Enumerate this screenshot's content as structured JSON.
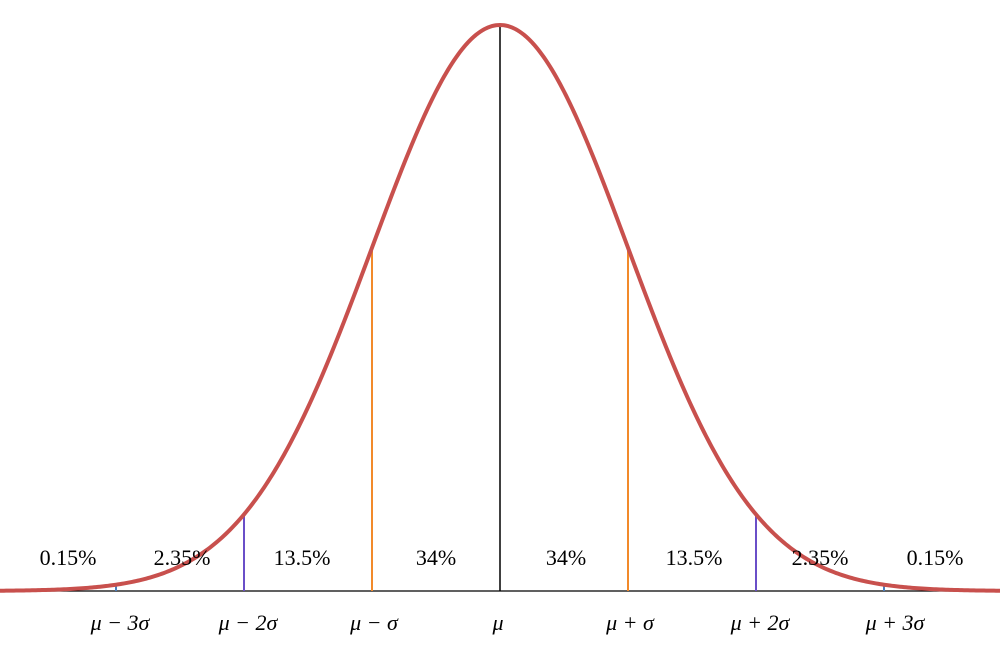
{
  "region_labels": [
    "0.15%",
    "2.35%",
    "13.5%",
    "34%",
    "34%",
    "13.5%",
    "2.35%",
    "0.15%"
  ],
  "axis_labels": [
    "μ − 3σ",
    "μ − 2σ",
    "μ − σ",
    "μ",
    "μ + σ",
    "μ + 2σ",
    "μ + 3σ"
  ]
}
